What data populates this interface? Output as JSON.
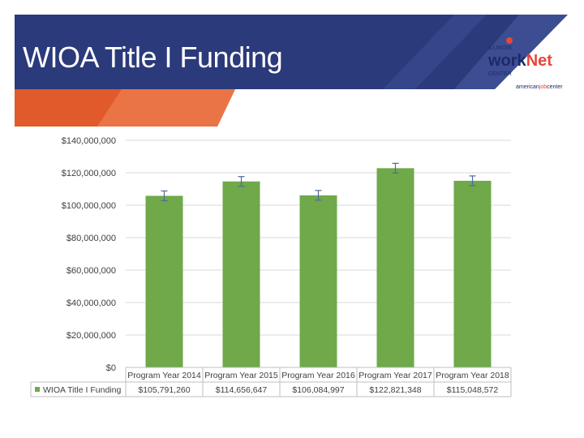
{
  "slide": {
    "title": "WIOA Title I Funding"
  },
  "logo": {
    "line1": "ILLINOIS",
    "word_a": "work",
    "word_b": "Net",
    "line3": "CENTER",
    "line4_a": "american",
    "line4_b": "job",
    "line4_c": "center"
  },
  "colors": {
    "banner_dark": "#2b3a7a",
    "banner_stripe": "#4a5aa0",
    "banner_orange": "#e05a2b",
    "banner_orange_light": "#ec7a4e",
    "bar": "#6fa94a",
    "error_bar": "#4f6b9a",
    "grid": "#d9d9d9"
  },
  "chart_data": {
    "type": "bar",
    "categories": [
      "Program Year 2014",
      "Program Year 2015",
      "Program Year 2016",
      "Program Year 2017",
      "Program Year 2018"
    ],
    "series": [
      {
        "name": "WIOA Title I Funding",
        "values": [
          105791260,
          114656647,
          106084997,
          122821348,
          115048572
        ],
        "value_labels": [
          "$105,791,260",
          "$114,656,647",
          "$106,084,997",
          "$122,821,348",
          "$115,048,572"
        ]
      }
    ],
    "ylim": [
      0,
      140000000
    ],
    "yticks": [
      0,
      20000000,
      40000000,
      60000000,
      80000000,
      100000000,
      120000000,
      140000000
    ],
    "ytick_labels": [
      "$0",
      "$20,000,000",
      "$40,000,000",
      "$60,000,000",
      "$80,000,000",
      "$100,000,000",
      "$120,000,000",
      "$140,000,000"
    ],
    "error_bars": true,
    "error_margin": 3000000,
    "grid": true,
    "data_table": true
  }
}
